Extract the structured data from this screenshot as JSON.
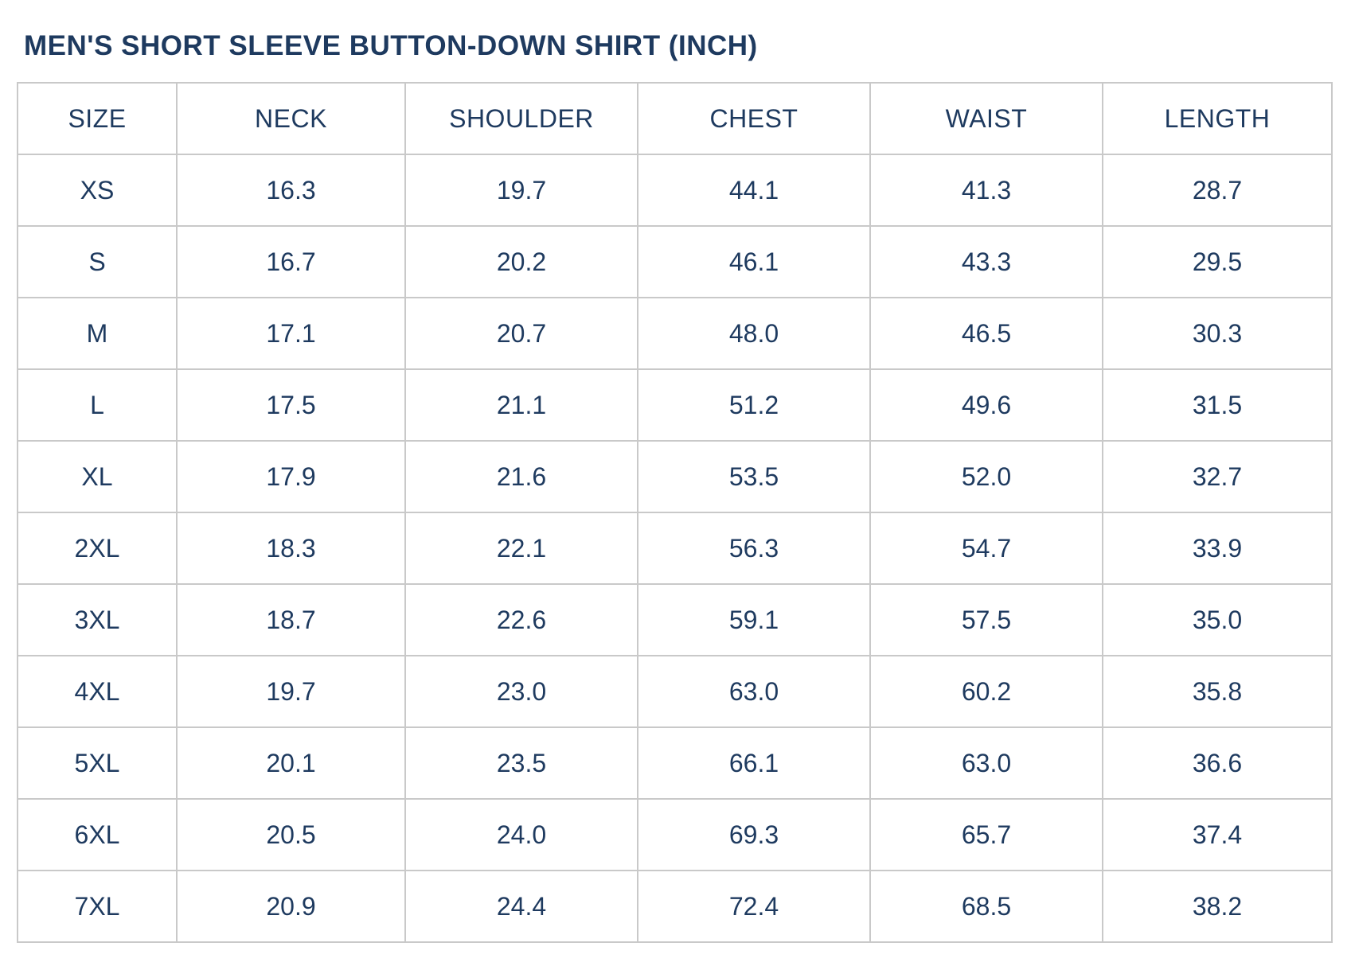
{
  "title": "MEN'S SHORT SLEEVE BUTTON-DOWN SHIRT (INCH)",
  "unit": "INCH",
  "colors": {
    "text_navy": "#1e3a5f",
    "grid_border": "#c9c9c9",
    "background": "#ffffff"
  },
  "table": {
    "headers": [
      "SIZE",
      "NECK",
      "SHOULDER",
      "CHEST",
      "WAIST",
      "LENGTH"
    ],
    "rows": [
      {
        "size": "XS",
        "values": [
          "16.3",
          "19.7",
          "44.1",
          "41.3",
          "28.7"
        ]
      },
      {
        "size": "S",
        "values": [
          "16.7",
          "20.2",
          "46.1",
          "43.3",
          "29.5"
        ]
      },
      {
        "size": "M",
        "values": [
          "17.1",
          "20.7",
          "48.0",
          "46.5",
          "30.3"
        ]
      },
      {
        "size": "L",
        "values": [
          "17.5",
          "21.1",
          "51.2",
          "49.6",
          "31.5"
        ]
      },
      {
        "size": "XL",
        "values": [
          "17.9",
          "21.6",
          "53.5",
          "52.0",
          "32.7"
        ]
      },
      {
        "size": "2XL",
        "values": [
          "18.3",
          "22.1",
          "56.3",
          "54.7",
          "33.9"
        ]
      },
      {
        "size": "3XL",
        "values": [
          "18.7",
          "22.6",
          "59.1",
          "57.5",
          "35.0"
        ]
      },
      {
        "size": "4XL",
        "values": [
          "19.7",
          "23.0",
          "63.0",
          "60.2",
          "35.8"
        ]
      },
      {
        "size": "5XL",
        "values": [
          "20.1",
          "23.5",
          "66.1",
          "63.0",
          "36.6"
        ]
      },
      {
        "size": "6XL",
        "values": [
          "20.5",
          "24.0",
          "69.3",
          "65.7",
          "37.4"
        ]
      },
      {
        "size": "7XL",
        "values": [
          "20.9",
          "24.4",
          "72.4",
          "68.5",
          "38.2"
        ]
      }
    ]
  }
}
